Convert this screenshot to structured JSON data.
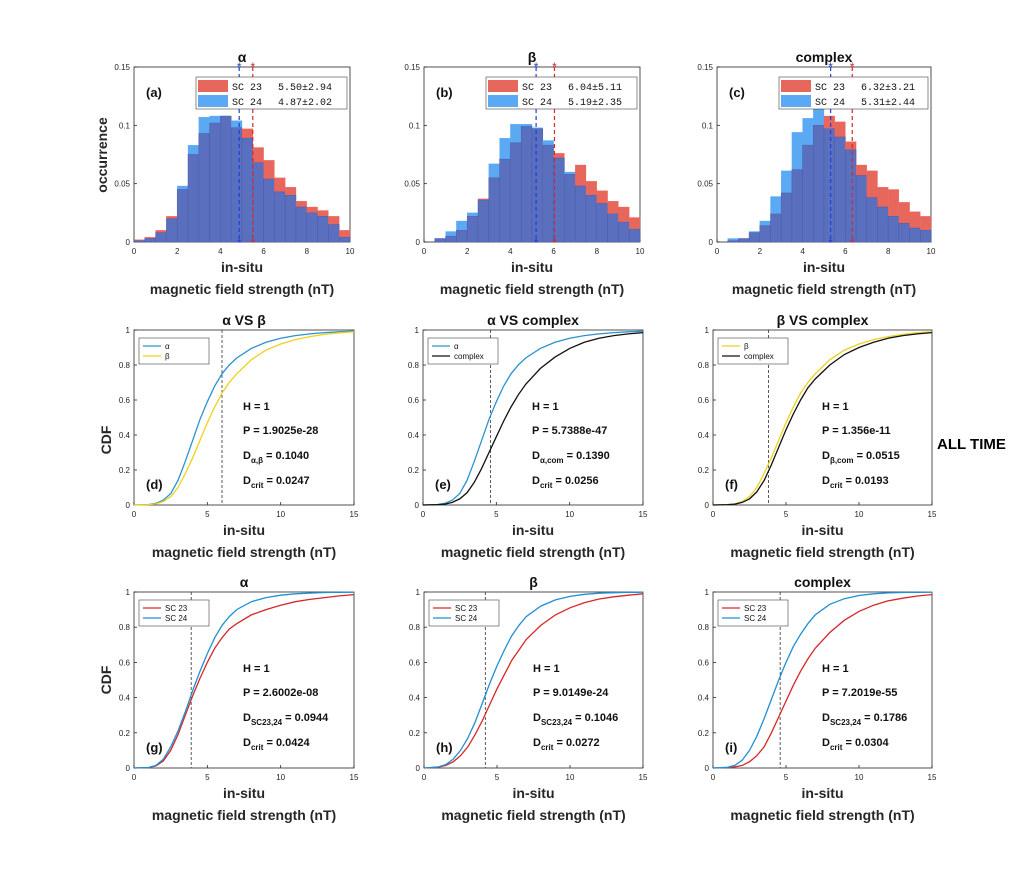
{
  "figure_label": "ALL TIME",
  "shared_labels": {
    "xlabel_line1": "in-situ",
    "xlabel_line2": "magnetic field strength (nT)",
    "ylabel_hist": "occurrence",
    "ylabel_cdf": "CDF"
  },
  "colors": {
    "sc23_fill": "#e8675d",
    "sc24_fill": "#5aa9f2",
    "overlap_fill": "#5b6fbf",
    "alpha_line": "#2a92cf",
    "beta_line": "#ecd21c",
    "complex_line": "#111111",
    "sc23_line": "#d62728",
    "sc24_line": "#1f8fd6"
  },
  "chart_data": [
    {
      "id": "a",
      "type": "bar",
      "panel_label": "(a)",
      "title": "α",
      "xlim": [
        0,
        10
      ],
      "ylim": [
        0,
        0.15
      ],
      "xticks": [
        "0",
        "2",
        "4",
        "6",
        "8",
        "10"
      ],
      "yticks": [
        "0",
        "0.05",
        "0.1",
        "0.15"
      ],
      "bin_edges": [
        0,
        0.5,
        1,
        1.5,
        2,
        2.5,
        3,
        3.5,
        4,
        4.5,
        5,
        5.5,
        6,
        6.5,
        7,
        7.5,
        8,
        8.5,
        9,
        9.5,
        10
      ],
      "series": [
        {
          "name": "SC 23",
          "stat": "5.50±2.94",
          "mean": 5.5,
          "values": [
            0.002,
            0.004,
            0.01,
            0.022,
            0.045,
            0.075,
            0.093,
            0.102,
            0.108,
            0.098,
            0.097,
            0.081,
            0.07,
            0.055,
            0.047,
            0.035,
            0.03,
            0.027,
            0.022,
            0.01
          ]
        },
        {
          "name": "SC 24",
          "stat": "4.87±2.02",
          "mean": 4.87,
          "values": [
            0.001,
            0.003,
            0.008,
            0.02,
            0.048,
            0.083,
            0.107,
            0.108,
            0.108,
            0.104,
            0.089,
            0.068,
            0.054,
            0.043,
            0.04,
            0.03,
            0.025,
            0.022,
            0.015,
            0.004
          ]
        }
      ]
    },
    {
      "id": "b",
      "type": "bar",
      "panel_label": "(b)",
      "title": "β",
      "xlim": [
        0,
        10
      ],
      "ylim": [
        0,
        0.15
      ],
      "xticks": [
        "0",
        "2",
        "4",
        "6",
        "8",
        "10"
      ],
      "yticks": [
        "0",
        "0.05",
        "0.1",
        "0.15"
      ],
      "bin_edges": [
        0.5,
        1,
        1.5,
        2,
        2.5,
        3,
        3.5,
        4,
        4.5,
        5,
        5.5,
        6,
        6.5,
        7,
        7.5,
        8,
        8.5,
        9,
        9.5,
        10
      ],
      "series": [
        {
          "name": "SC 23",
          "stat": "6.04±5.11",
          "mean": 6.04,
          "values": [
            0.003,
            0.005,
            0.01,
            0.022,
            0.037,
            0.055,
            0.071,
            0.085,
            0.099,
            0.097,
            0.083,
            0.076,
            0.058,
            0.066,
            0.052,
            0.044,
            0.035,
            0.03,
            0.021
          ]
        },
        {
          "name": "SC 24",
          "stat": "5.19±2.35",
          "mean": 5.19,
          "values": [
            0.003,
            0.009,
            0.018,
            0.025,
            0.036,
            0.067,
            0.089,
            0.101,
            0.101,
            0.098,
            0.087,
            0.072,
            0.06,
            0.048,
            0.04,
            0.033,
            0.024,
            0.017,
            0.011
          ]
        }
      ]
    },
    {
      "id": "c",
      "type": "bar",
      "panel_label": "(c)",
      "title": "complex",
      "xlim": [
        0,
        10
      ],
      "ylim": [
        0,
        0.15
      ],
      "xticks": [
        "0",
        "2",
        "4",
        "6",
        "8",
        "10"
      ],
      "yticks": [
        "0",
        "0.05",
        "0.1",
        "0.15"
      ],
      "bin_edges": [
        0.5,
        1,
        1.5,
        2,
        2.5,
        3,
        3.5,
        4,
        4.5,
        5,
        5.5,
        6,
        6.5,
        7,
        7.5,
        8,
        8.5,
        9,
        9.5,
        10
      ],
      "series": [
        {
          "name": "SC 23",
          "stat": "6.32±3.21",
          "mean": 6.32,
          "values": [
            0.001,
            0.003,
            0.008,
            0.014,
            0.024,
            0.042,
            0.062,
            0.083,
            0.1,
            0.108,
            0.103,
            0.086,
            0.066,
            0.061,
            0.047,
            0.045,
            0.034,
            0.026,
            0.022
          ]
        },
        {
          "name": "SC 24",
          "stat": "5.31±2.44",
          "mean": 5.31,
          "values": [
            0.003,
            0.003,
            0.009,
            0.018,
            0.039,
            0.061,
            0.094,
            0.106,
            0.115,
            0.097,
            0.09,
            0.079,
            0.057,
            0.038,
            0.03,
            0.022,
            0.016,
            0.012,
            0.01
          ]
        }
      ]
    },
    {
      "id": "d",
      "type": "line",
      "panel_label": "(d)",
      "title": "α VS β",
      "xlim": [
        0,
        15
      ],
      "ylim": [
        0,
        1
      ],
      "xticks": [
        "0",
        "5",
        "10",
        "15"
      ],
      "yticks": [
        "0",
        "0.2",
        "0.4",
        "0.6",
        "0.8",
        "1"
      ],
      "crit_line_x": 6.0,
      "series": [
        {
          "name": "α",
          "color_key": "alpha_line",
          "x": [
            0,
            1,
            1.5,
            2,
            2.5,
            3,
            3.5,
            4,
            4.5,
            5,
            5.5,
            6,
            6.5,
            7,
            8,
            9,
            10,
            11,
            12,
            13,
            14,
            15
          ],
          "y": [
            0,
            0.003,
            0.01,
            0.028,
            0.065,
            0.14,
            0.25,
            0.37,
            0.49,
            0.59,
            0.68,
            0.75,
            0.8,
            0.84,
            0.895,
            0.93,
            0.953,
            0.968,
            0.978,
            0.985,
            0.99,
            0.993
          ]
        },
        {
          "name": "β",
          "color_key": "beta_line",
          "x": [
            0,
            1,
            1.5,
            2,
            2.5,
            3,
            3.5,
            4,
            4.5,
            5,
            5.5,
            6,
            6.5,
            7,
            8,
            9,
            10,
            11,
            12,
            13,
            14,
            15
          ],
          "y": [
            0,
            0.002,
            0.006,
            0.02,
            0.048,
            0.1,
            0.18,
            0.27,
            0.37,
            0.47,
            0.56,
            0.64,
            0.7,
            0.75,
            0.83,
            0.885,
            0.92,
            0.945,
            0.962,
            0.975,
            0.984,
            0.99
          ]
        }
      ],
      "stats": [
        "H = 1",
        "P = 1.9025e-28",
        "D",
        "α,β",
        " = 0.1040",
        "D",
        "crit",
        " = 0.0247"
      ]
    },
    {
      "id": "e",
      "type": "line",
      "panel_label": "(e)",
      "title": "α VS complex",
      "xlim": [
        0,
        15
      ],
      "ylim": [
        0,
        1
      ],
      "xticks": [
        "0",
        "5",
        "10",
        "15"
      ],
      "yticks": [
        "0",
        "0.2",
        "0.4",
        "0.6",
        "0.8",
        "1"
      ],
      "crit_line_x": 4.6,
      "series": [
        {
          "name": "α",
          "color_key": "alpha_line",
          "x": [
            0,
            1,
            1.5,
            2,
            2.5,
            3,
            3.5,
            4,
            4.5,
            5,
            5.5,
            6,
            6.5,
            7,
            8,
            9,
            10,
            11,
            12,
            13,
            14,
            15
          ],
          "y": [
            0,
            0.003,
            0.01,
            0.028,
            0.065,
            0.14,
            0.25,
            0.37,
            0.49,
            0.59,
            0.68,
            0.75,
            0.8,
            0.84,
            0.895,
            0.93,
            0.953,
            0.968,
            0.978,
            0.985,
            0.99,
            0.993
          ]
        },
        {
          "name": "complex",
          "color_key": "complex_line",
          "x": [
            0,
            1,
            1.5,
            2,
            2.5,
            3,
            3.5,
            4,
            4.5,
            5,
            5.5,
            6,
            6.5,
            7,
            8,
            9,
            10,
            11,
            12,
            13,
            14,
            15
          ],
          "y": [
            0,
            0.002,
            0.005,
            0.015,
            0.035,
            0.07,
            0.13,
            0.21,
            0.3,
            0.39,
            0.48,
            0.56,
            0.63,
            0.69,
            0.78,
            0.845,
            0.895,
            0.93,
            0.953,
            0.968,
            0.978,
            0.985
          ]
        }
      ],
      "stats": [
        "H = 1",
        "P = 5.7388e-47",
        "D",
        "α,com",
        " = 0.1390",
        "D",
        "crit",
        " = 0.0256"
      ]
    },
    {
      "id": "f",
      "type": "line",
      "panel_label": "(f)",
      "title": "β VS complex",
      "xlim": [
        0,
        15
      ],
      "ylim": [
        0,
        1
      ],
      "xticks": [
        "0",
        "5",
        "10",
        "15"
      ],
      "yticks": [
        "0",
        "0.2",
        "0.4",
        "0.6",
        "0.8",
        "1"
      ],
      "crit_line_x": 3.8,
      "series": [
        {
          "name": "β",
          "color_key": "beta_line",
          "x": [
            0,
            1,
            1.5,
            2,
            2.5,
            3,
            3.5,
            4,
            4.5,
            5,
            5.5,
            6,
            6.5,
            7,
            8,
            9,
            10,
            11,
            12,
            13,
            14,
            15
          ],
          "y": [
            0,
            0.002,
            0.006,
            0.02,
            0.048,
            0.1,
            0.18,
            0.27,
            0.37,
            0.47,
            0.56,
            0.64,
            0.7,
            0.75,
            0.83,
            0.885,
            0.92,
            0.945,
            0.962,
            0.975,
            0.984,
            0.99
          ]
        },
        {
          "name": "complex",
          "color_key": "complex_line",
          "x": [
            0,
            1,
            1.5,
            2,
            2.5,
            3,
            3.5,
            4,
            4.5,
            5,
            5.5,
            6,
            6.5,
            7,
            8,
            9,
            10,
            11,
            12,
            13,
            14,
            15
          ],
          "y": [
            0,
            0.002,
            0.005,
            0.015,
            0.035,
            0.075,
            0.14,
            0.23,
            0.33,
            0.43,
            0.52,
            0.6,
            0.67,
            0.72,
            0.8,
            0.86,
            0.9,
            0.93,
            0.953,
            0.968,
            0.978,
            0.985
          ]
        }
      ],
      "stats": [
        "H = 1",
        "P = 1.356e-11",
        "D",
        "β,com",
        " = 0.0515",
        "D",
        "crit",
        " = 0.0193"
      ]
    },
    {
      "id": "g",
      "type": "line",
      "panel_label": "(g)",
      "title": "α",
      "xlim": [
        0,
        15
      ],
      "ylim": [
        0,
        1
      ],
      "xticks": [
        "0",
        "5",
        "10",
        "15"
      ],
      "yticks": [
        "0",
        "0.2",
        "0.4",
        "0.6",
        "0.8",
        "1"
      ],
      "crit_line_x": 3.9,
      "series": [
        {
          "name": "SC 23",
          "color_key": "sc23_line",
          "x": [
            0,
            1,
            1.5,
            2,
            2.5,
            3,
            3.5,
            4,
            4.5,
            5,
            5.5,
            6,
            6.5,
            7,
            8,
            9,
            10,
            11,
            12,
            13,
            14,
            15
          ],
          "y": [
            0,
            0.003,
            0.012,
            0.04,
            0.1,
            0.19,
            0.3,
            0.41,
            0.51,
            0.6,
            0.68,
            0.74,
            0.79,
            0.82,
            0.87,
            0.9,
            0.925,
            0.945,
            0.958,
            0.968,
            0.978,
            0.985
          ]
        },
        {
          "name": "SC 24",
          "color_key": "sc24_line",
          "x": [
            0,
            1,
            1.5,
            2,
            2.5,
            3,
            3.5,
            4,
            4.5,
            5,
            5.5,
            6,
            6.5,
            7,
            8,
            9,
            10,
            11,
            12,
            13,
            14,
            15
          ],
          "y": [
            0,
            0.003,
            0.015,
            0.05,
            0.12,
            0.21,
            0.32,
            0.44,
            0.55,
            0.65,
            0.74,
            0.81,
            0.86,
            0.9,
            0.945,
            0.968,
            0.982,
            0.99,
            0.994,
            0.997,
            0.998,
            0.999
          ]
        }
      ],
      "stats": [
        "H = 1",
        "P = 2.6002e-08",
        "D",
        "SC23,24",
        " = 0.0944",
        "D",
        "crit",
        " = 0.0424"
      ]
    },
    {
      "id": "h",
      "type": "line",
      "panel_label": "(h)",
      "title": "β",
      "xlim": [
        0,
        15
      ],
      "ylim": [
        0,
        1
      ],
      "xticks": [
        "0",
        "5",
        "10",
        "15"
      ],
      "yticks": [
        "0",
        "0.2",
        "0.4",
        "0.6",
        "0.8",
        "1"
      ],
      "crit_line_x": 4.2,
      "series": [
        {
          "name": "SC 23",
          "color_key": "sc23_line",
          "x": [
            0,
            1,
            1.5,
            2,
            2.5,
            3,
            3.5,
            4,
            4.5,
            5,
            5.5,
            6,
            6.5,
            7,
            8,
            9,
            10,
            11,
            12,
            13,
            14,
            15
          ],
          "y": [
            0,
            0.005,
            0.015,
            0.035,
            0.07,
            0.12,
            0.19,
            0.27,
            0.36,
            0.45,
            0.53,
            0.61,
            0.67,
            0.73,
            0.81,
            0.87,
            0.91,
            0.94,
            0.96,
            0.973,
            0.982,
            0.99
          ]
        },
        {
          "name": "SC 24",
          "color_key": "sc24_line",
          "x": [
            0,
            1,
            1.5,
            2,
            2.5,
            3,
            3.5,
            4,
            4.5,
            5,
            5.5,
            6,
            6.5,
            7,
            8,
            9,
            10,
            11,
            12,
            13,
            14,
            15
          ],
          "y": [
            0,
            0.006,
            0.02,
            0.05,
            0.1,
            0.17,
            0.26,
            0.37,
            0.48,
            0.58,
            0.67,
            0.75,
            0.81,
            0.86,
            0.92,
            0.955,
            0.975,
            0.987,
            0.993,
            0.996,
            0.998,
            0.999
          ]
        }
      ],
      "stats": [
        "H = 1",
        "P = 9.0149e-24",
        "D",
        "SC23,24",
        " = 0.1046",
        "D",
        "crit",
        " = 0.0272"
      ]
    },
    {
      "id": "i",
      "type": "line",
      "panel_label": "(i)",
      "title": "complex",
      "xlim": [
        0,
        15
      ],
      "ylim": [
        0,
        1
      ],
      "xticks": [
        "0",
        "5",
        "10",
        "15"
      ],
      "yticks": [
        "0",
        "0.2",
        "0.4",
        "0.6",
        "0.8",
        "1"
      ],
      "crit_line_x": 4.6,
      "series": [
        {
          "name": "SC 23",
          "color_key": "sc23_line",
          "x": [
            0,
            1,
            1.5,
            2,
            2.5,
            3,
            3.5,
            4,
            4.5,
            5,
            5.5,
            6,
            6.5,
            7,
            8,
            9,
            10,
            11,
            12,
            13,
            14,
            15
          ],
          "y": [
            0,
            0.002,
            0.006,
            0.015,
            0.035,
            0.07,
            0.12,
            0.2,
            0.29,
            0.38,
            0.47,
            0.55,
            0.62,
            0.68,
            0.77,
            0.84,
            0.89,
            0.925,
            0.95,
            0.965,
            0.977,
            0.985
          ]
        },
        {
          "name": "SC 24",
          "color_key": "sc24_line",
          "x": [
            0,
            1,
            1.5,
            2,
            2.5,
            3,
            3.5,
            4,
            4.5,
            5,
            5.5,
            6,
            6.5,
            7,
            8,
            9,
            10,
            11,
            12,
            13,
            14,
            15
          ],
          "y": [
            0,
            0.004,
            0.015,
            0.045,
            0.1,
            0.18,
            0.28,
            0.39,
            0.5,
            0.6,
            0.69,
            0.76,
            0.82,
            0.87,
            0.93,
            0.962,
            0.98,
            0.99,
            0.995,
            0.997,
            0.998,
            0.999
          ]
        }
      ],
      "stats": [
        "H = 1",
        "P = 7.2019e-55",
        "D",
        "SC23,24",
        " = 0.1786",
        "D",
        "crit",
        " = 0.0304"
      ]
    }
  ]
}
